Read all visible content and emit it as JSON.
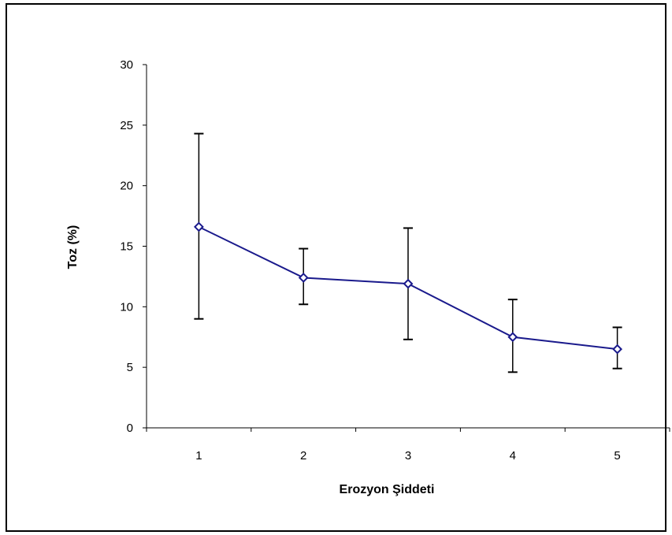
{
  "chart_data": {
    "type": "line",
    "title": "",
    "xlabel": "Erozyon Şiddeti",
    "ylabel": "Toz (%)",
    "categories": [
      "1",
      "2",
      "3",
      "4",
      "5"
    ],
    "series": [
      {
        "values": [
          16.6,
          12.4,
          11.9,
          7.5,
          6.5
        ],
        "error_low": [
          9.0,
          10.2,
          7.3,
          4.6,
          4.9
        ],
        "error_high": [
          24.3,
          14.8,
          16.5,
          10.6,
          8.3
        ]
      }
    ],
    "ylim": [
      0,
      30
    ],
    "yticks": [
      "0",
      "5",
      "10",
      "15",
      "20",
      "25",
      "30"
    ],
    "grid": false,
    "legend": "none",
    "colors": {
      "line": "#1a1a8c",
      "marker_fill": "#ffffff",
      "error_bar": "#000000",
      "axis": "#000000"
    }
  }
}
